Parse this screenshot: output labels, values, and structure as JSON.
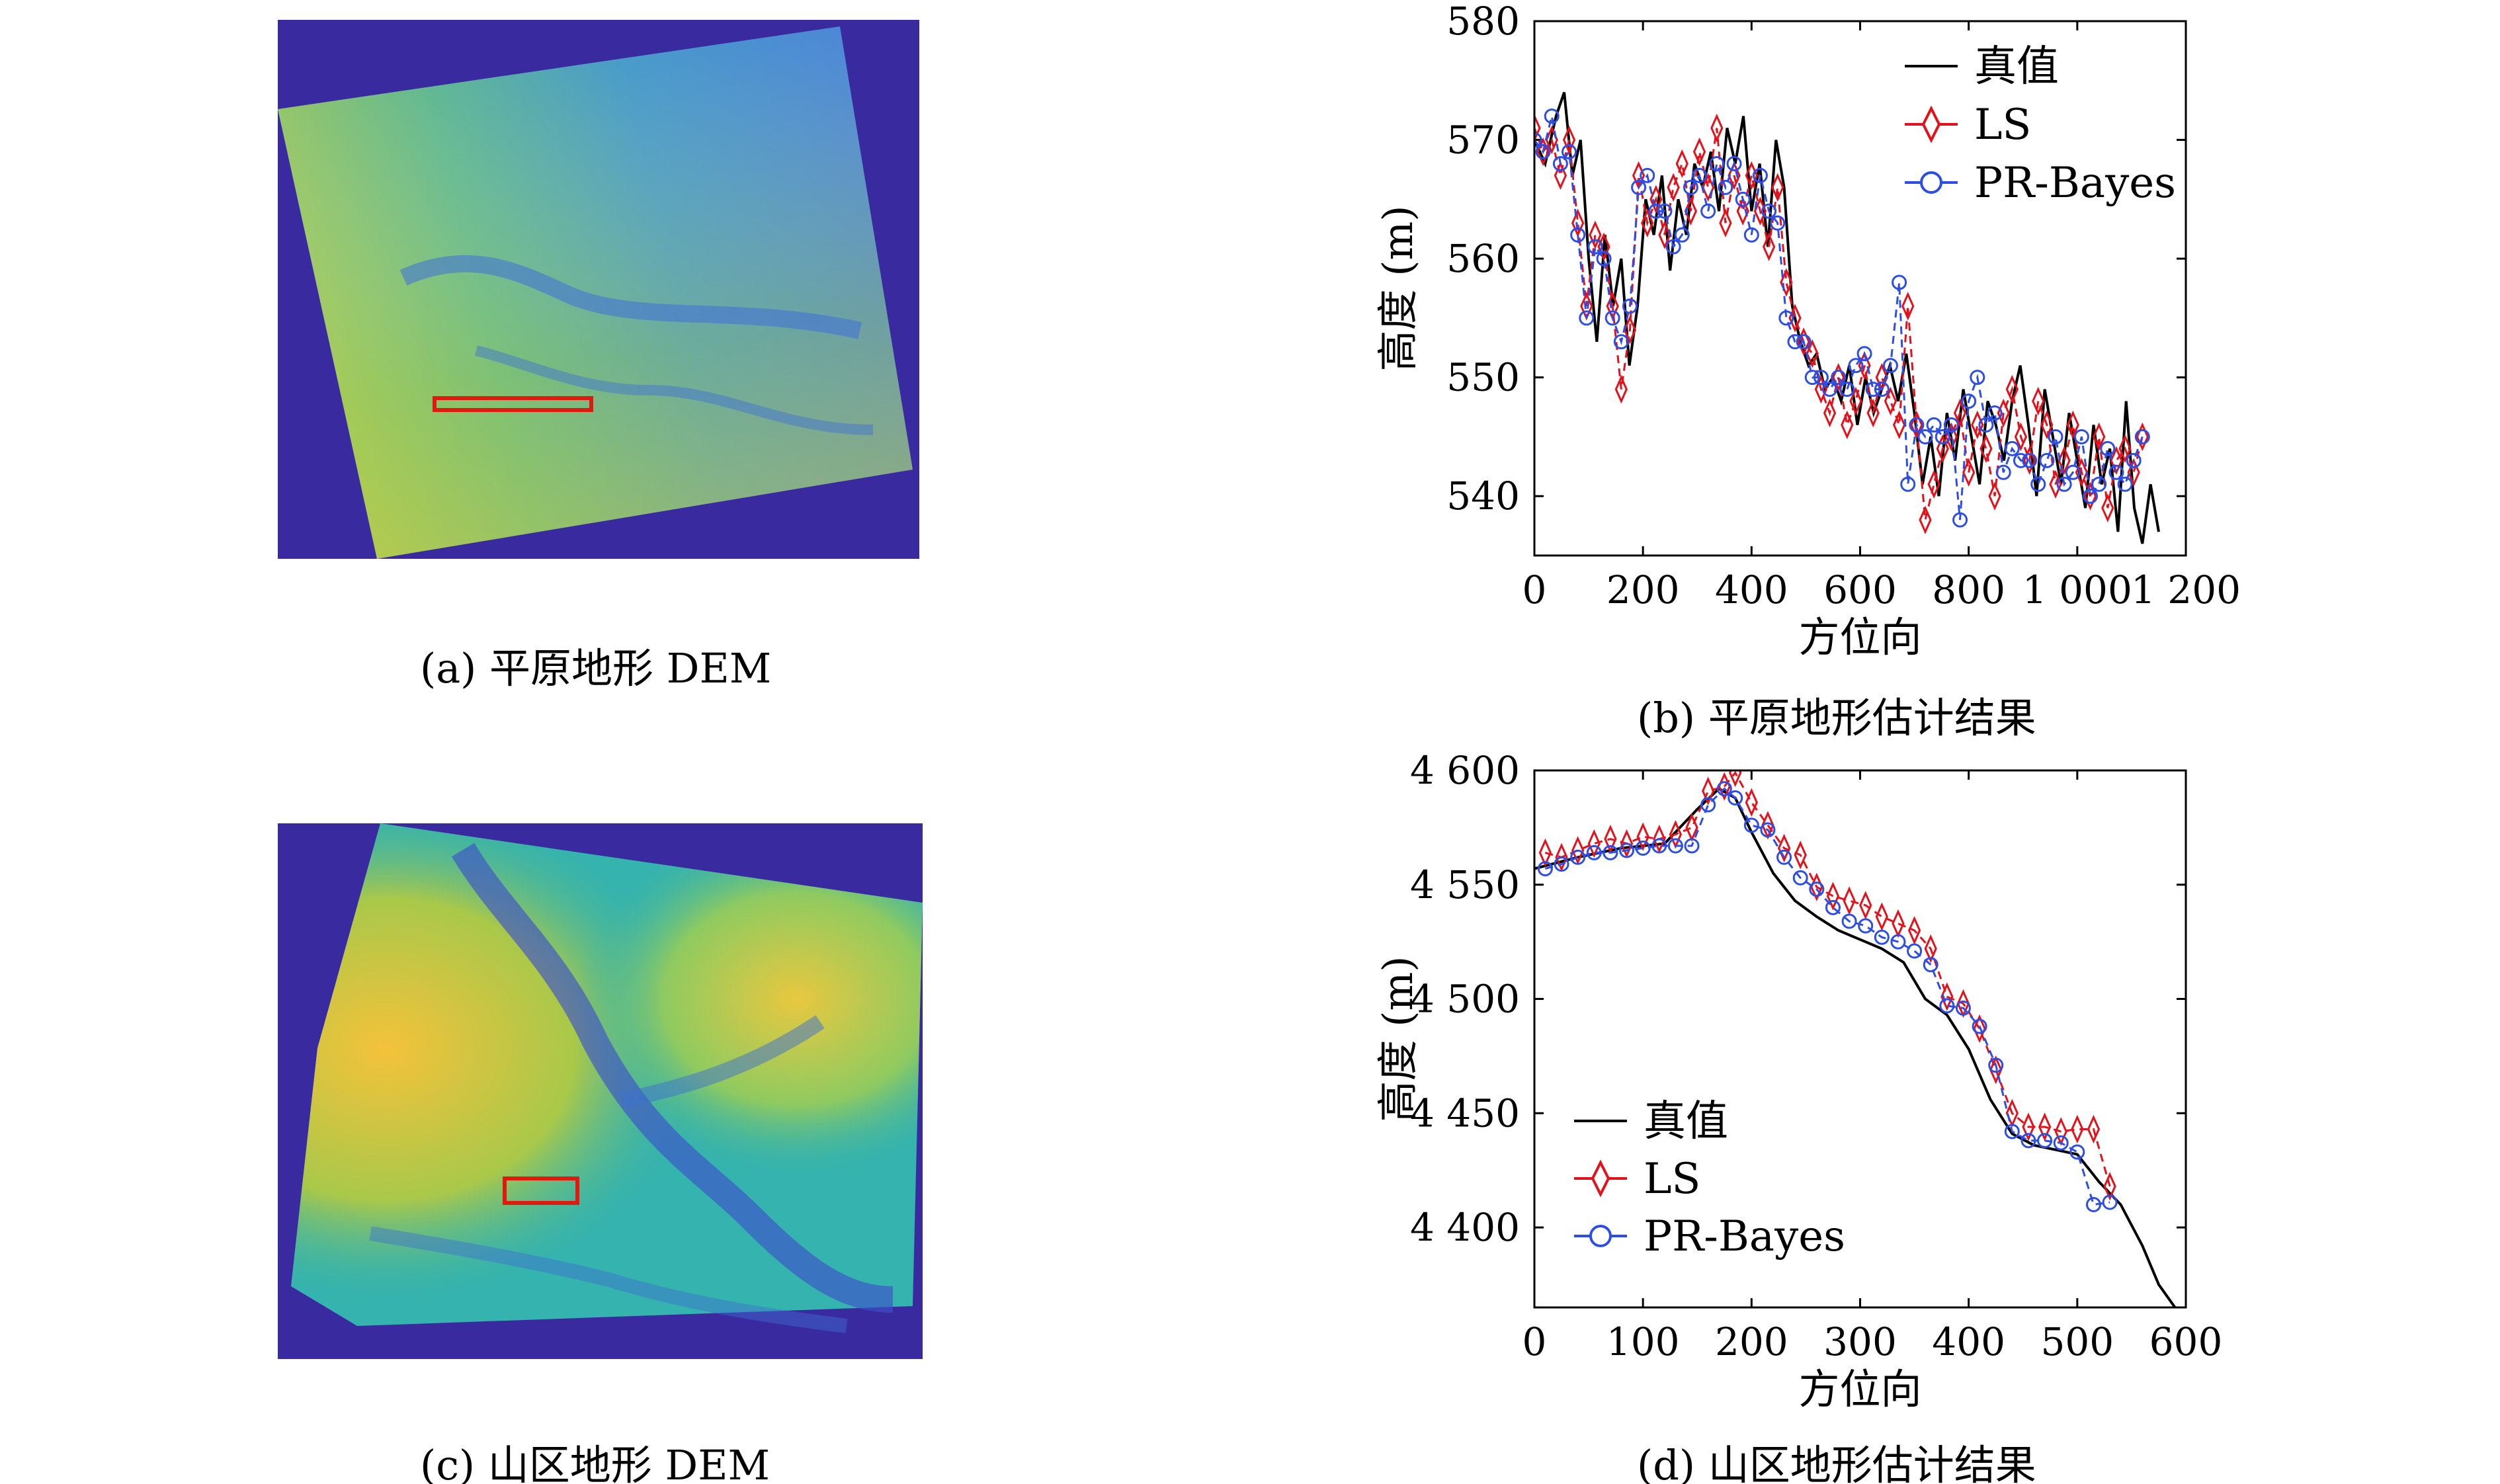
{
  "colors": {
    "truth": "#000000",
    "ls": "#e4111a",
    "bayes": "#2c4de8",
    "dem_bg": "#3a2aa0",
    "roi": "#e11a10"
  },
  "panels": [
    {
      "id": "a",
      "caption": "(a) 平原地形 DEM",
      "kind": "dem-plain"
    },
    {
      "id": "b",
      "caption": "(b) 平原地形估计结果",
      "kind": "chart"
    },
    {
      "id": "c",
      "caption": "(c) 山区地形 DEM",
      "kind": "dem-mountain"
    },
    {
      "id": "d",
      "caption": "(d) 山区地形估计结果",
      "kind": "chart"
    }
  ],
  "chart_data": [
    {
      "type": "line",
      "xlabel": "方位向",
      "ylabel": "高度 (m)",
      "xlim": [
        0,
        1200
      ],
      "ylim": [
        535,
        580
      ],
      "xticks": [
        0,
        200,
        400,
        600,
        800,
        1000,
        1200
      ],
      "xtick_labels": [
        "0",
        "200",
        "400",
        "600",
        "800",
        "1 000",
        "1 200"
      ],
      "yticks": [
        540,
        550,
        560,
        570,
        580
      ],
      "ytick_labels": [
        "540",
        "550",
        "560",
        "570",
        "580"
      ],
      "legend_position": "top-right",
      "series": [
        {
          "name": "真值",
          "style": "solid-black",
          "x": [
            0,
            20,
            40,
            55,
            70,
            85,
            100,
            115,
            130,
            145,
            160,
            175,
            190,
            205,
            220,
            235,
            250,
            265,
            280,
            295,
            310,
            325,
            340,
            355,
            370,
            385,
            400,
            415,
            430,
            445,
            460,
            475,
            490,
            505,
            520,
            535,
            550,
            565,
            580,
            595,
            610,
            625,
            640,
            655,
            670,
            685,
            700,
            715,
            730,
            745,
            760,
            775,
            790,
            805,
            820,
            835,
            850,
            865,
            880,
            895,
            910,
            925,
            940,
            955,
            970,
            985,
            1000,
            1015,
            1030,
            1045,
            1060,
            1075,
            1090,
            1105,
            1120,
            1135,
            1150
          ],
          "values": [
            570,
            568,
            572,
            574,
            567,
            570,
            560,
            553,
            562,
            556,
            560,
            551,
            556,
            565,
            562,
            567,
            559,
            565,
            562,
            568,
            566,
            569,
            564,
            571,
            568,
            572,
            564,
            568,
            561,
            570,
            566,
            556,
            553,
            551,
            552,
            549,
            550,
            548,
            551,
            546,
            550,
            547,
            549,
            551,
            548,
            552,
            547,
            541,
            545,
            540,
            547,
            543,
            549,
            545,
            541,
            548,
            546,
            543,
            548,
            551,
            546,
            540,
            549,
            545,
            541,
            547,
            543,
            539,
            546,
            541,
            544,
            537,
            548,
            539,
            536,
            541,
            537
          ]
        },
        {
          "name": "LS",
          "style": "red-diamond-dash",
          "x": [
            0,
            16,
            32,
            48,
            64,
            80,
            96,
            112,
            128,
            144,
            160,
            176,
            192,
            208,
            224,
            240,
            256,
            272,
            288,
            304,
            320,
            336,
            352,
            368,
            384,
            400,
            416,
            432,
            448,
            464,
            480,
            496,
            512,
            528,
            544,
            560,
            576,
            592,
            608,
            624,
            640,
            656,
            672,
            688,
            704,
            720,
            736,
            752,
            768,
            784,
            800,
            816,
            832,
            848,
            864,
            880,
            896,
            912,
            928,
            944,
            960,
            976,
            992,
            1008,
            1024,
            1040,
            1056,
            1072,
            1088,
            1104,
            1120
          ],
          "values": [
            571,
            569,
            570,
            567,
            570,
            563,
            556,
            562,
            561,
            556,
            549,
            554,
            567,
            563,
            565,
            562,
            566,
            568,
            564,
            569,
            566,
            571,
            563,
            567,
            564,
            567,
            564,
            561,
            566,
            558,
            555,
            553,
            552,
            549,
            547,
            550,
            546,
            548,
            551,
            547,
            550,
            548,
            546,
            556,
            546,
            538,
            541,
            544,
            545,
            547,
            542,
            546,
            544,
            540,
            547,
            549,
            545,
            543,
            548,
            546,
            541,
            543,
            546,
            542,
            540,
            545,
            539,
            543,
            544,
            542,
            545
          ]
        },
        {
          "name": "PR-Bayes",
          "style": "blue-circle-dash",
          "x": [
            0,
            16,
            32,
            48,
            64,
            80,
            96,
            112,
            128,
            144,
            160,
            176,
            192,
            208,
            224,
            240,
            256,
            272,
            288,
            304,
            320,
            336,
            352,
            368,
            384,
            400,
            416,
            432,
            448,
            464,
            480,
            496,
            512,
            528,
            544,
            560,
            576,
            592,
            608,
            624,
            640,
            656,
            672,
            688,
            704,
            720,
            736,
            752,
            768,
            784,
            800,
            816,
            832,
            848,
            864,
            880,
            896,
            912,
            928,
            944,
            960,
            976,
            992,
            1008,
            1024,
            1040,
            1056,
            1072,
            1088,
            1104,
            1120
          ],
          "values": [
            570,
            569,
            572,
            568,
            569,
            562,
            555,
            561,
            560,
            555,
            553,
            556,
            566,
            567,
            564,
            564,
            561,
            562,
            566,
            567,
            564,
            568,
            566,
            568,
            565,
            562,
            567,
            564,
            563,
            555,
            553,
            553,
            550,
            550,
            549,
            550,
            549,
            551,
            552,
            549,
            549,
            551,
            558,
            541,
            546,
            545,
            546,
            545,
            546,
            538,
            548,
            550,
            546,
            547,
            542,
            544,
            543,
            543,
            541,
            543,
            545,
            541,
            542,
            545,
            540,
            541,
            544,
            542,
            541,
            543,
            545
          ]
        }
      ]
    },
    {
      "type": "line",
      "xlabel": "方位向",
      "ylabel": "高度 (m)",
      "xlim": [
        0,
        600
      ],
      "ylim": [
        4365,
        4600
      ],
      "xticks": [
        0,
        100,
        200,
        300,
        400,
        500,
        600
      ],
      "xtick_labels": [
        "0",
        "100",
        "200",
        "300",
        "400",
        "500",
        "600"
      ],
      "yticks": [
        4400,
        4450,
        4500,
        4550,
        4600
      ],
      "ytick_labels": [
        "4 400",
        "4 450",
        "4 500",
        "4 550",
        "4 600"
      ],
      "legend_position": "bottom-left",
      "series": [
        {
          "name": "真值",
          "style": "solid-black",
          "x": [
            0,
            40,
            80,
            120,
            150,
            170,
            185,
            200,
            220,
            240,
            260,
            280,
            300,
            320,
            340,
            360,
            380,
            400,
            420,
            440,
            460,
            480,
            500,
            520,
            540,
            560,
            575,
            590
          ],
          "values": [
            4557,
            4562,
            4566,
            4568,
            4583,
            4592,
            4588,
            4573,
            4555,
            4543,
            4536,
            4530,
            4526,
            4522,
            4516,
            4500,
            4493,
            4478,
            4456,
            4441,
            4436,
            4434,
            4432,
            4420,
            4410,
            4392,
            4375,
            4365
          ]
        },
        {
          "name": "LS",
          "style": "red-diamond-dash",
          "x": [
            10,
            25,
            40,
            55,
            70,
            85,
            100,
            115,
            130,
            145,
            160,
            175,
            185,
            200,
            215,
            230,
            245,
            260,
            275,
            290,
            305,
            320,
            335,
            350,
            365,
            380,
            395,
            410,
            425,
            440,
            455,
            470,
            485,
            500,
            515,
            530
          ],
          "values": [
            4564,
            4562,
            4565,
            4568,
            4570,
            4568,
            4571,
            4570,
            4572,
            4575,
            4591,
            4593,
            4599,
            4586,
            4576,
            4566,
            4563,
            4549,
            4545,
            4543,
            4541,
            4536,
            4533,
            4530,
            4522,
            4501,
            4498,
            4487,
            4469,
            4450,
            4444,
            4444,
            4442,
            4443,
            4443,
            4418
          ]
        },
        {
          "name": "PR-Bayes",
          "style": "blue-circle-dash",
          "x": [
            10,
            25,
            40,
            55,
            70,
            85,
            100,
            115,
            130,
            145,
            160,
            175,
            185,
            200,
            215,
            230,
            245,
            260,
            275,
            290,
            305,
            320,
            335,
            350,
            365,
            380,
            395,
            410,
            425,
            440,
            455,
            470,
            485,
            500,
            515,
            530
          ],
          "values": [
            4557,
            4559,
            4562,
            4564,
            4564,
            4565,
            4566,
            4567,
            4567,
            4567,
            4585,
            4592,
            4588,
            4576,
            4574,
            4562,
            4553,
            4548,
            4540,
            4534,
            4532,
            4527,
            4525,
            4521,
            4515,
            4497,
            4496,
            4488,
            4471,
            4442,
            4438,
            4438,
            4437,
            4433,
            4410,
            4411
          ]
        }
      ]
    }
  ]
}
